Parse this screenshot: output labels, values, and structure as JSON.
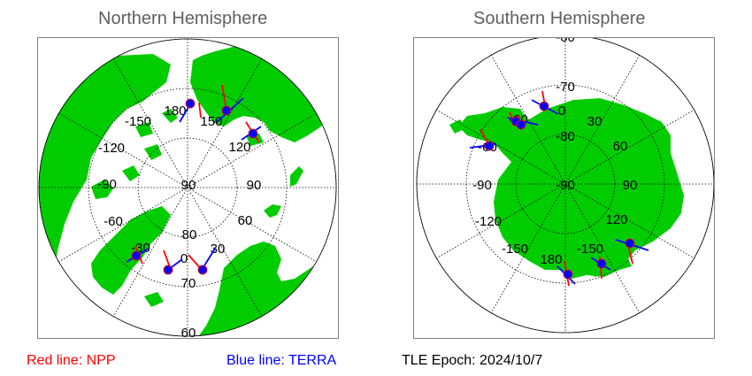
{
  "north": {
    "title": "Northern Hemisphere",
    "labels": {
      "lon_m150": "-150",
      "lon_180": "180",
      "lon_150": "150",
      "lon_m120": "-120",
      "lon_120": "120",
      "lon_m90": "-90",
      "lat_90": "90",
      "lon_90": "90",
      "lon_m60": "-60",
      "lon_60": "60",
      "lat_80": "80",
      "lon_m30": "-30",
      "lon_0": "0",
      "lon_30": "30",
      "lat_70": "70",
      "lat_60": "60"
    }
  },
  "south": {
    "title": "Southern Hemisphere",
    "labels": {
      "lat_m60": "-60",
      "lat_m70": "-70",
      "lon_0": "0",
      "lon_m30": "-30",
      "lon_30": "30",
      "lat_m80": "-80",
      "lon_m60": "-60",
      "lon_60": "60",
      "lon_m90": "-90",
      "lat_m90": "-90",
      "lon_90": "90",
      "lon_m120": "-120",
      "lon_120": "120",
      "lon_m150": "-150",
      "lon_150": "-150",
      "lon_180": "180"
    }
  },
  "legend": {
    "npp": "Red line: NPP",
    "terra": "Blue line: TERRA",
    "epoch": "TLE Epoch: 2024/10/7"
  },
  "colors": {
    "land": "#00cc00",
    "npp": "#ff0000",
    "terra": "#0000ff",
    "grid": "#000000"
  }
}
